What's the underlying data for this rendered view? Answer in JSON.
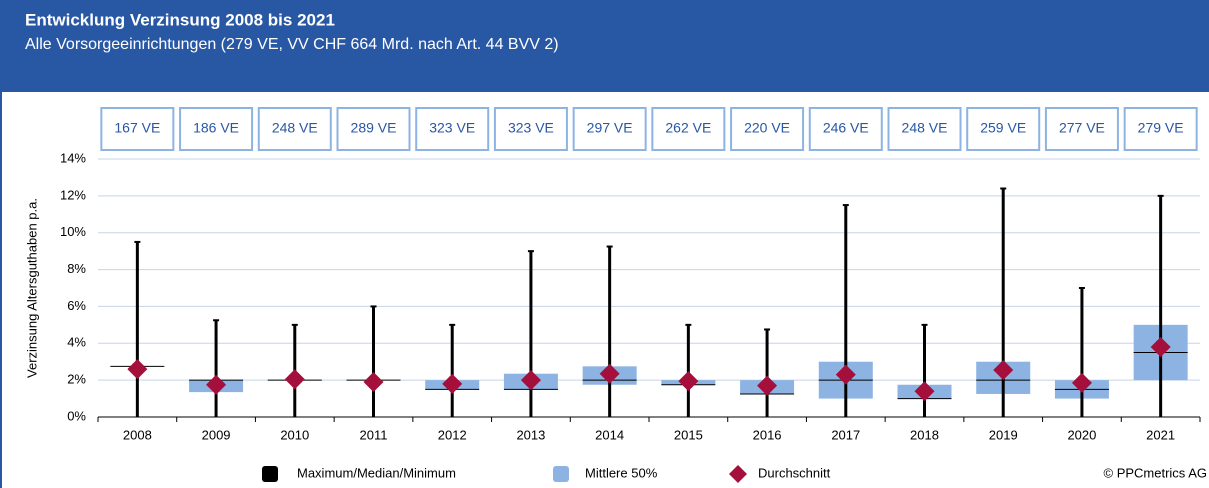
{
  "chart_data": {
    "type": "box",
    "title": "Entwicklung Verzinsung 2008 bis 2021",
    "subtitle": "Alle Vorsorgeeinrichtungen (279 VE, VV CHF 664 Mrd. nach Art. 44 BVV 2)",
    "y_label": "Verzinsung Altersguthaben p.a.",
    "categories": [
      "2008",
      "2009",
      "2010",
      "2011",
      "2012",
      "2013",
      "2014",
      "2015",
      "2016",
      "2017",
      "2018",
      "2019",
      "2020",
      "2021"
    ],
    "count_labels": [
      "167 VE",
      "186 VE",
      "248 VE",
      "289 VE",
      "323 VE",
      "323 VE",
      "297 VE",
      "262 VE",
      "220 VE",
      "246 VE",
      "248 VE",
      "259 VE",
      "277 VE",
      "279 VE"
    ],
    "min": [
      0,
      0,
      0,
      0,
      0,
      0,
      0,
      0,
      0,
      0,
      0,
      0,
      0,
      0
    ],
    "q1": [
      2.75,
      1.35,
      2.0,
      2.0,
      1.5,
      1.5,
      1.75,
      1.75,
      1.25,
      1.0,
      1.0,
      1.25,
      1.0,
      2.0
    ],
    "median": [
      2.75,
      2.0,
      2.0,
      2.0,
      1.5,
      1.5,
      2.0,
      1.75,
      1.25,
      2.0,
      1.0,
      2.0,
      1.5,
      3.5
    ],
    "q3": [
      2.75,
      2.0,
      2.0,
      2.0,
      2.0,
      2.35,
      2.75,
      2.0,
      2.0,
      3.0,
      1.75,
      3.0,
      2.0,
      5.0
    ],
    "max": [
      9.5,
      5.25,
      5.0,
      6.0,
      5.0,
      9.0,
      9.25,
      5.0,
      4.75,
      11.5,
      5.0,
      12.4,
      7.0,
      12.0
    ],
    "mean": [
      2.6,
      1.75,
      2.05,
      1.9,
      1.8,
      2.0,
      2.35,
      1.95,
      1.7,
      2.3,
      1.4,
      2.55,
      1.85,
      3.8
    ],
    "legend": [
      {
        "name": "Maximum/Median/Minimum",
        "color": "#000000"
      },
      {
        "name": "Mittlere 50%",
        "color": "#8db3e2"
      },
      {
        "name": "Durchschnitt",
        "color": "#a50f3c"
      }
    ],
    "ylim": [
      0,
      14
    ],
    "yticks": [
      {
        "value": 0,
        "label": "0%"
      },
      {
        "value": 2,
        "label": "2%"
      },
      {
        "value": 4,
        "label": "4%"
      },
      {
        "value": 6,
        "label": "6%"
      },
      {
        "value": 8,
        "label": "8%"
      },
      {
        "value": 10,
        "label": "10%"
      },
      {
        "value": 12,
        "label": "12%"
      },
      {
        "value": 14,
        "label": "14%"
      }
    ],
    "grid": true,
    "source": "© PPCmetrics AG"
  }
}
